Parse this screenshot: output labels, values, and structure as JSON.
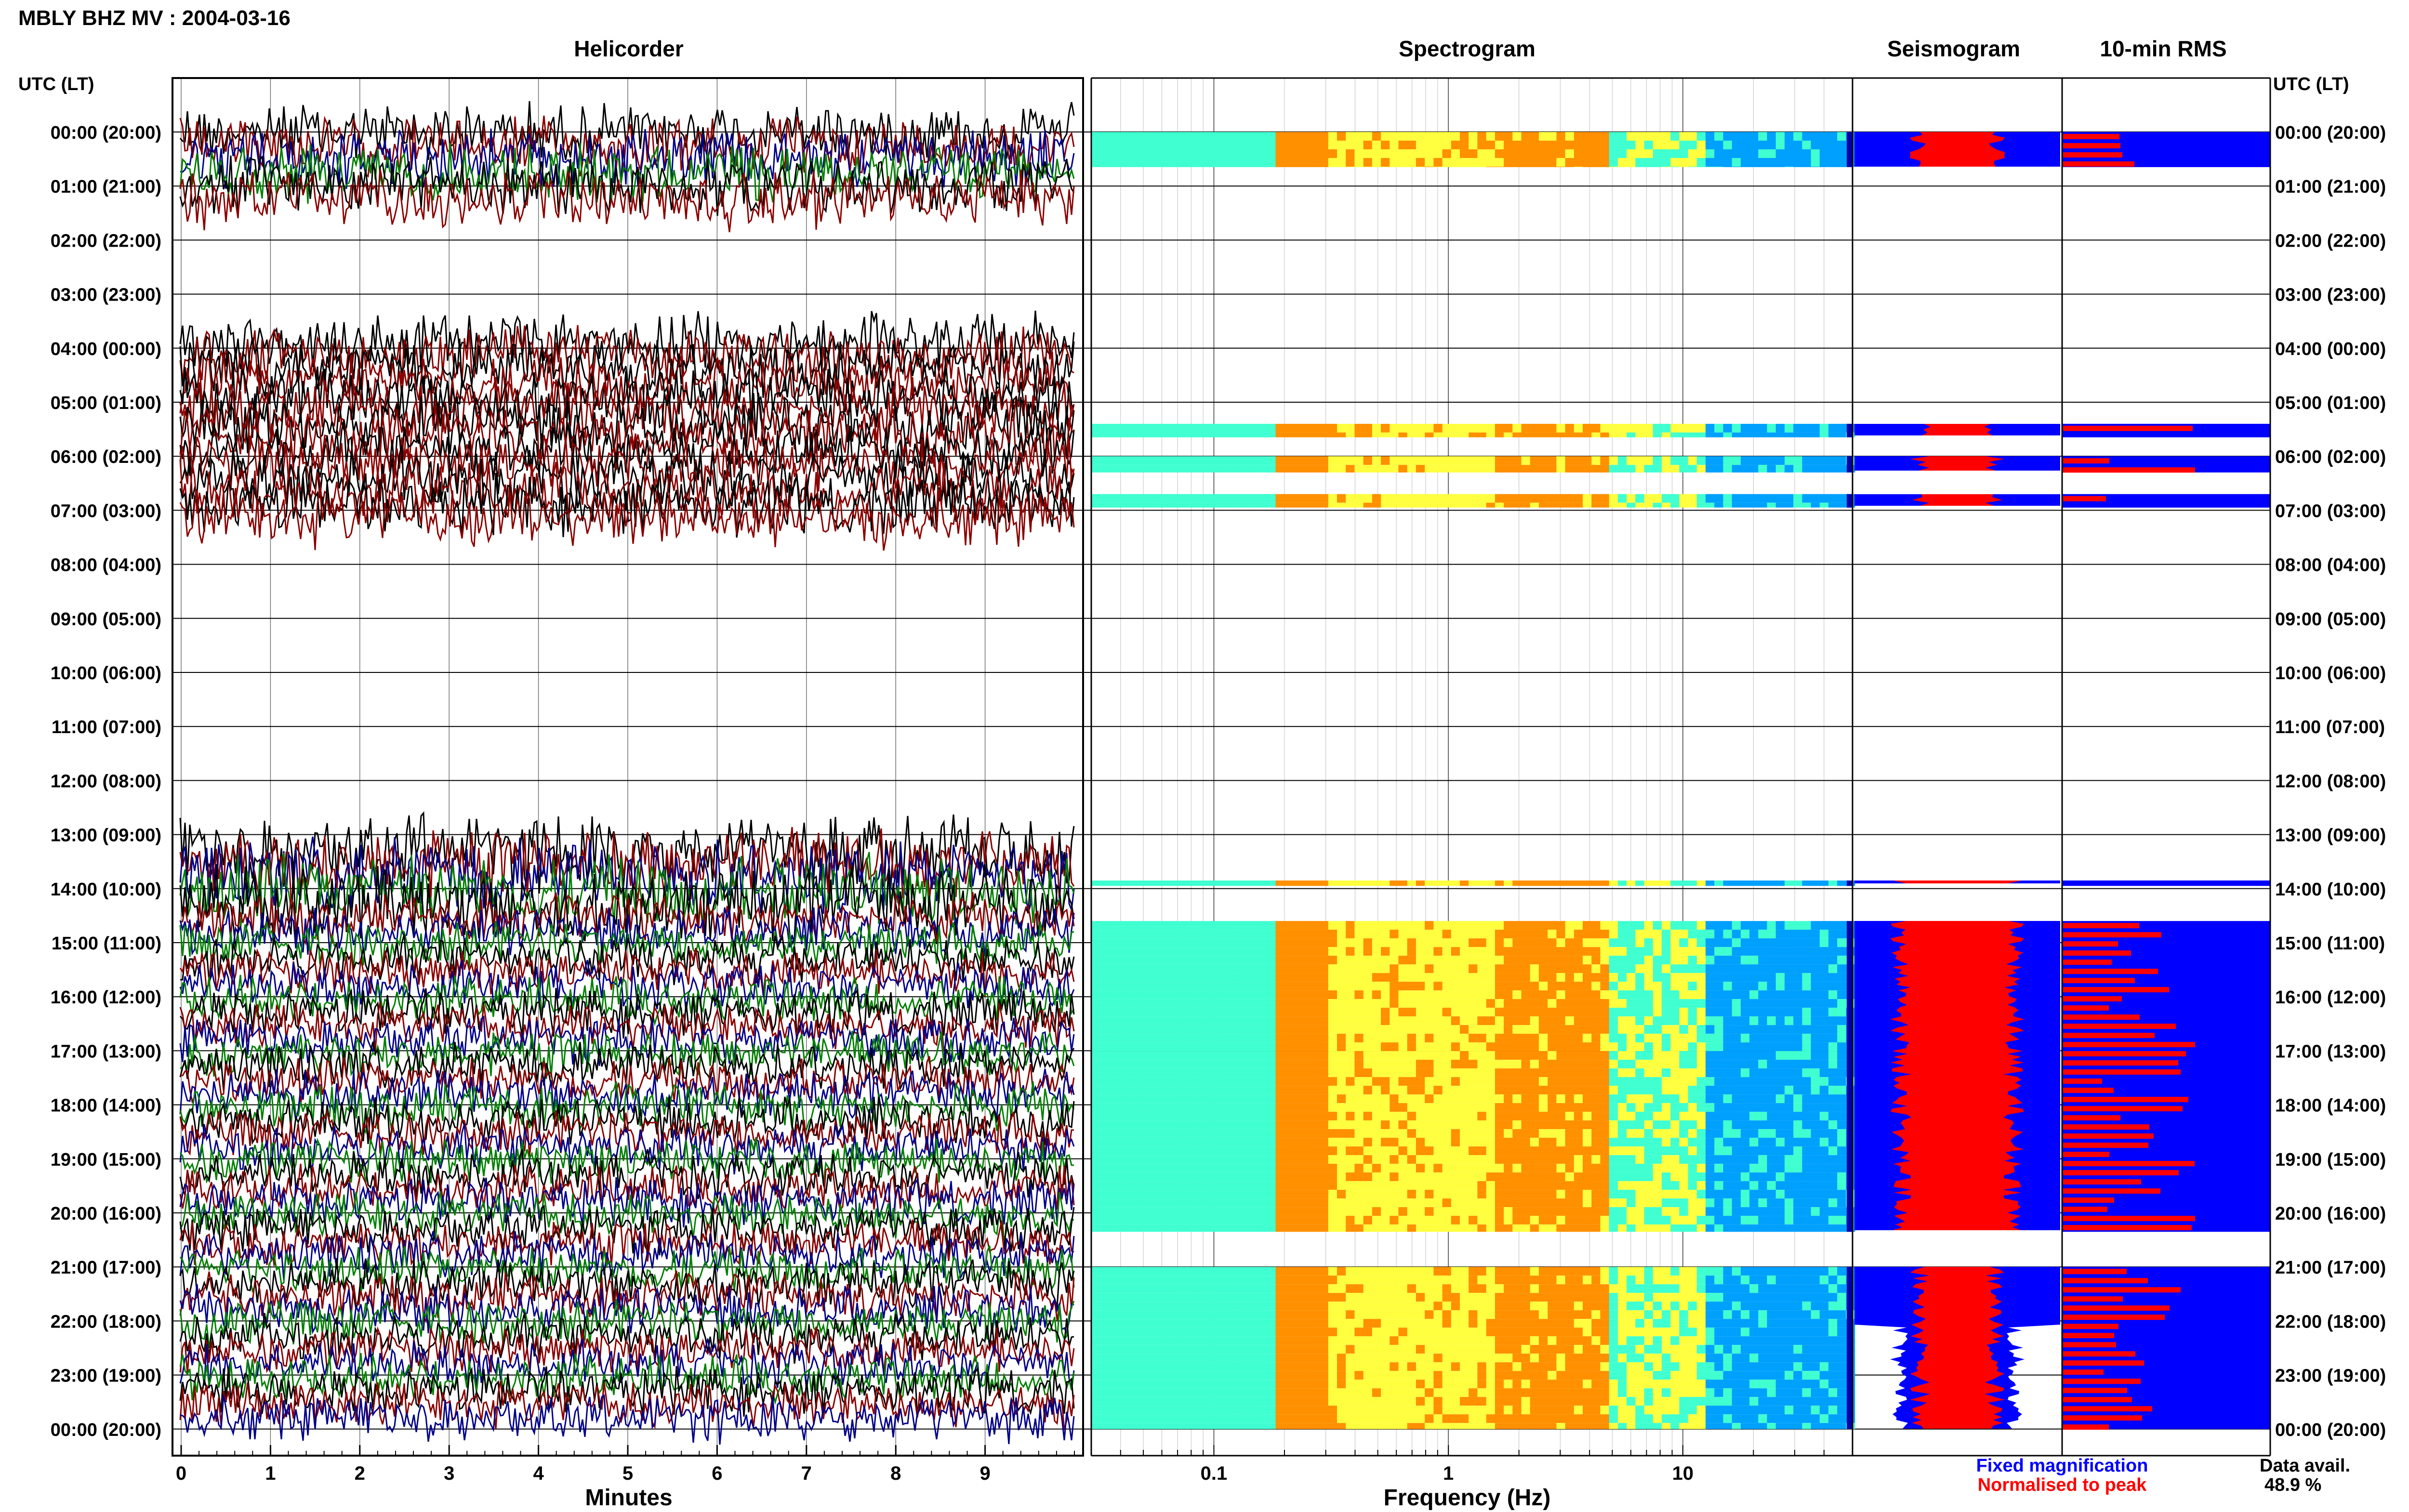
{
  "title": "MBLY BHZ MV : 2004-03-16",
  "panels": {
    "helicorder": "Helicorder",
    "spectrogram": "Spectrogram",
    "seismogram": "Seismogram",
    "rms": "10-min RMS"
  },
  "time_header": "UTC (LT)",
  "time_labels": [
    "00:00 (20:00)",
    "01:00 (21:00)",
    "02:00 (22:00)",
    "03:00 (23:00)",
    "04:00 (00:00)",
    "05:00 (01:00)",
    "06:00 (02:00)",
    "07:00 (03:00)",
    "08:00 (04:00)",
    "09:00 (05:00)",
    "10:00 (06:00)",
    "11:00 (07:00)",
    "12:00 (08:00)",
    "13:00 (09:00)",
    "14:00 (10:00)",
    "15:00 (11:00)",
    "16:00 (12:00)",
    "17:00 (13:00)",
    "18:00 (14:00)",
    "19:00 (15:00)",
    "20:00 (16:00)",
    "21:00 (17:00)",
    "22:00 (18:00)",
    "23:00 (19:00)",
    "00:00 (20:00)"
  ],
  "legend": {
    "fixed": "Fixed magnification",
    "normalised": "Normalised to peak",
    "fixed_color": "#0000ff",
    "normalised_color": "#ff0000"
  },
  "data_avail": {
    "label": "Data avail.",
    "value": "48.9 %"
  },
  "chart_data": [
    {
      "type": "line",
      "panel": "helicorder",
      "xlabel": "Minutes",
      "x_ticks": [
        "0",
        "1",
        "2",
        "3",
        "4",
        "5",
        "6",
        "7",
        "8",
        "9"
      ],
      "xlim": [
        0,
        10
      ],
      "ylim_hours": [
        0,
        24
      ],
      "trace_colors": [
        "#000000",
        "#8b0000",
        "#00008b",
        "#008000"
      ],
      "data_segments_hours": [
        [
          0,
          1.3
        ],
        [
          3.9,
          7.3
        ],
        [
          13.3,
          24
        ]
      ],
      "grid": true
    },
    {
      "type": "heatmap",
      "panel": "spectrogram",
      "xlabel": "Frequency (Hz)",
      "x_scale": "log",
      "xlim": [
        0.03,
        50
      ],
      "x_ticks": [
        {
          "value": 0.1,
          "label": "0.1"
        },
        {
          "value": 1,
          "label": "1"
        },
        {
          "value": 10,
          "label": "10"
        }
      ],
      "colormap": [
        "#00a0ff",
        "#40ffd0",
        "#ffff40",
        "#ff9000",
        "#ff2000"
      ],
      "rows_hours": [
        [
          0,
          0.65
        ],
        [
          5.4,
          5.65
        ],
        [
          6.0,
          6.3
        ],
        [
          6.7,
          6.95
        ],
        [
          13.85,
          13.95
        ],
        [
          14.6,
          20.35
        ],
        [
          21.0,
          24.0
        ]
      ]
    },
    {
      "type": "area",
      "panel": "seismogram",
      "series": [
        {
          "name": "Fixed magnification",
          "color": "#0000ff"
        },
        {
          "name": "Normalised to peak",
          "color": "#ff0000"
        }
      ]
    },
    {
      "type": "bar",
      "panel": "rms",
      "orientation": "horizontal",
      "series": [
        {
          "name": "Fixed magnification",
          "color": "#0000ff"
        },
        {
          "name": "Normalised to peak",
          "color": "#ff0000"
        }
      ]
    }
  ]
}
